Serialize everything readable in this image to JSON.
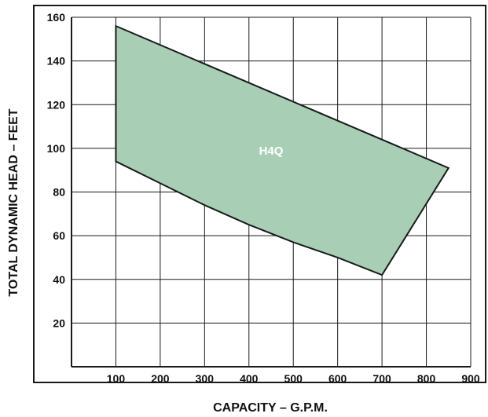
{
  "chart_data": {
    "type": "area",
    "xlabel": "CAPACITY – G.P.M.",
    "ylabel": "TOTAL DYNAMIC HEAD – FEET",
    "xlim": [
      0,
      900
    ],
    "ylim": [
      0,
      160
    ],
    "x_ticks": [
      100,
      200,
      300,
      400,
      500,
      600,
      700,
      800,
      900
    ],
    "y_ticks": [
      20,
      40,
      60,
      80,
      100,
      120,
      140,
      160
    ],
    "grid": true,
    "colors": {
      "fill": "#a8cfb6",
      "stroke": "#1a1a1a",
      "grid": "#1a1a1a",
      "label": "#ffffff"
    },
    "series": [
      {
        "name": "H4Q",
        "upper": [
          [
            100,
            156
          ],
          [
            850,
            91
          ]
        ],
        "lower": [
          [
            100,
            94
          ],
          [
            200,
            84
          ],
          [
            300,
            74
          ],
          [
            400,
            65
          ],
          [
            500,
            57
          ],
          [
            600,
            50
          ],
          [
            700,
            42
          ],
          [
            850,
            91
          ]
        ],
        "label_position": [
          450,
          97
        ]
      }
    ]
  }
}
